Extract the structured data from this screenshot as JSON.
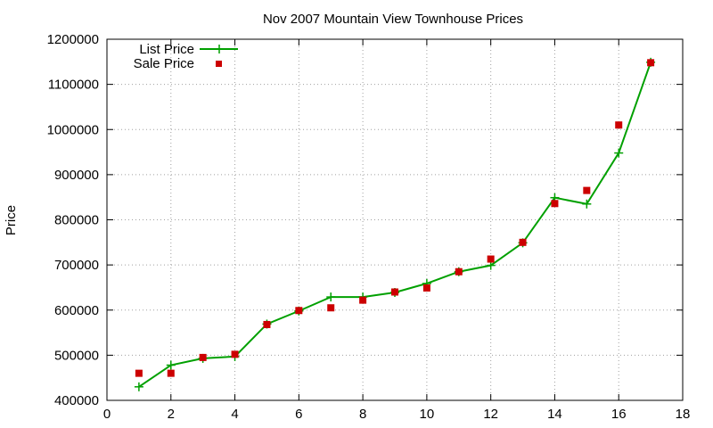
{
  "chart_data": {
    "type": "line",
    "title": "Nov 2007 Mountain View Townhouse Prices",
    "xlabel": "",
    "ylabel": "Price",
    "xlim": [
      0,
      18
    ],
    "ylim": [
      400000,
      1200000
    ],
    "xticks": [
      0,
      2,
      4,
      6,
      8,
      10,
      12,
      14,
      16,
      18
    ],
    "yticks": [
      400000,
      500000,
      600000,
      700000,
      800000,
      900000,
      1000000,
      1100000,
      1200000
    ],
    "xtick_labels": [
      "0",
      "2",
      "4",
      "6",
      "8",
      "10",
      "12",
      "14",
      "16",
      "18"
    ],
    "ytick_labels": [
      "400000",
      "500000",
      "600000",
      "700000",
      "800000",
      "900000",
      "1000000",
      "1100000",
      "1200000"
    ],
    "grid": true,
    "legend_position": "top-left",
    "series": [
      {
        "name": "List Price",
        "style": "line-with-plus-markers",
        "color": "#00a000",
        "x": [
          1,
          2,
          3,
          4,
          5,
          6,
          7,
          8,
          9,
          10,
          11,
          12,
          13,
          14,
          15,
          16,
          17
        ],
        "y": [
          430000,
          478000,
          493000,
          497000,
          569000,
          598000,
          629000,
          629000,
          639000,
          659000,
          685000,
          699000,
          749000,
          849000,
          835000,
          948000,
          1149000
        ]
      },
      {
        "name": "Sale Price",
        "style": "square-points",
        "color": "#cc0000",
        "x": [
          1,
          2,
          3,
          4,
          5,
          6,
          7,
          8,
          9,
          10,
          11,
          12,
          13,
          14,
          15,
          16,
          17
        ],
        "y": [
          460000,
          460000,
          495000,
          502000,
          568000,
          599000,
          605000,
          622000,
          640000,
          649000,
          685000,
          713000,
          750000,
          836000,
          865000,
          1010000,
          1148000
        ]
      }
    ]
  }
}
